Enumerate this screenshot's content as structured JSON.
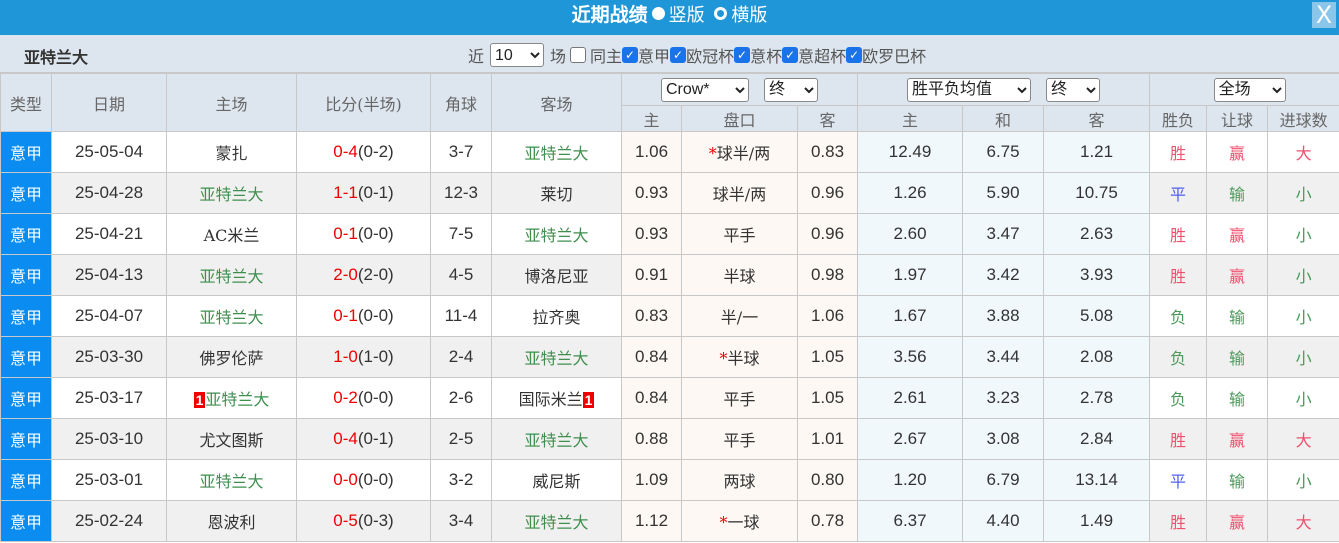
{
  "title": {
    "text": "近期战绩",
    "opt_vertical": "竖版",
    "opt_horizontal": "横版",
    "close": "X"
  },
  "filter": {
    "team": "亚特兰大",
    "near": "近",
    "count": "10",
    "games": "场",
    "same_home": "同主",
    "leagues": [
      "意甲",
      "欧冠杯",
      "意杯",
      "意超杯",
      "欧罗巴杯"
    ]
  },
  "header": {
    "type": "类型",
    "date": "日期",
    "home": "主场",
    "score": "比分(半场)",
    "corner": "角球",
    "away": "客场",
    "company": "Crow*",
    "final1": "终",
    "odds_type": "胜平负均值",
    "final2": "终",
    "scope": "全场",
    "h_home": "主",
    "h_line": "盘口",
    "h_away": "客",
    "e_home": "主",
    "e_draw": "和",
    "e_away": "客",
    "res_wl": "胜负",
    "res_hc": "让球",
    "res_goals": "进球数"
  },
  "rows": [
    {
      "type": "意甲",
      "date": "25-05-04",
      "home": "蒙扎",
      "home_hl": false,
      "score": "0-4",
      "half": "(0-2)",
      "corner": "3-7",
      "away": "亚特兰大",
      "away_hl": true,
      "ah": "1.06",
      "star": "*",
      "line": "球半/两",
      "aa": "0.83",
      "eh": "12.49",
      "ed": "6.75",
      "ea": "1.21",
      "wl": "胜",
      "hc": "赢",
      "goals": "大"
    },
    {
      "type": "意甲",
      "date": "25-04-28",
      "home": "亚特兰大",
      "home_hl": true,
      "score": "1-1",
      "half": "(0-1)",
      "corner": "12-3",
      "away": "莱切",
      "away_hl": false,
      "ah": "0.93",
      "star": "",
      "line": "球半/两",
      "aa": "0.96",
      "eh": "1.26",
      "ed": "5.90",
      "ea": "10.75",
      "wl": "平",
      "hc": "输",
      "goals": "小"
    },
    {
      "type": "意甲",
      "date": "25-04-21",
      "home": "AC米兰",
      "home_hl": false,
      "score": "0-1",
      "half": "(0-0)",
      "corner": "7-5",
      "away": "亚特兰大",
      "away_hl": true,
      "ah": "0.93",
      "star": "",
      "line": "平手",
      "aa": "0.96",
      "eh": "2.60",
      "ed": "3.47",
      "ea": "2.63",
      "wl": "胜",
      "hc": "赢",
      "goals": "小"
    },
    {
      "type": "意甲",
      "date": "25-04-13",
      "home": "亚特兰大",
      "home_hl": true,
      "score": "2-0",
      "half": "(2-0)",
      "corner": "4-5",
      "away": "博洛尼亚",
      "away_hl": false,
      "ah": "0.91",
      "star": "",
      "line": "半球",
      "aa": "0.98",
      "eh": "1.97",
      "ed": "3.42",
      "ea": "3.93",
      "wl": "胜",
      "hc": "赢",
      "goals": "小"
    },
    {
      "type": "意甲",
      "date": "25-04-07",
      "home": "亚特兰大",
      "home_hl": true,
      "score": "0-1",
      "half": "(0-0)",
      "corner": "11-4",
      "away": "拉齐奥",
      "away_hl": false,
      "ah": "0.83",
      "star": "",
      "line": "半/一",
      "aa": "1.06",
      "eh": "1.67",
      "ed": "3.88",
      "ea": "5.08",
      "wl": "负",
      "hc": "输",
      "goals": "小"
    },
    {
      "type": "意甲",
      "date": "25-03-30",
      "home": "佛罗伦萨",
      "home_hl": false,
      "score": "1-0",
      "half": "(1-0)",
      "corner": "2-4",
      "away": "亚特兰大",
      "away_hl": true,
      "ah": "0.84",
      "star": "*",
      "line": "半球",
      "aa": "1.05",
      "eh": "3.56",
      "ed": "3.44",
      "ea": "2.08",
      "wl": "负",
      "hc": "输",
      "goals": "小"
    },
    {
      "type": "意甲",
      "date": "25-03-17",
      "home": "亚特兰大",
      "home_hl": true,
      "home_card": "1",
      "score": "0-2",
      "half": "(0-0)",
      "corner": "2-6",
      "away": "国际米兰",
      "away_hl": false,
      "away_card": "1",
      "ah": "0.84",
      "star": "",
      "line": "平手",
      "aa": "1.05",
      "eh": "2.61",
      "ed": "3.23",
      "ea": "2.78",
      "wl": "负",
      "hc": "输",
      "goals": "小"
    },
    {
      "type": "意甲",
      "date": "25-03-10",
      "home": "尤文图斯",
      "home_hl": false,
      "score": "0-4",
      "half": "(0-1)",
      "corner": "2-5",
      "away": "亚特兰大",
      "away_hl": true,
      "ah": "0.88",
      "star": "",
      "line": "平手",
      "aa": "1.01",
      "eh": "2.67",
      "ed": "3.08",
      "ea": "2.84",
      "wl": "胜",
      "hc": "赢",
      "goals": "大"
    },
    {
      "type": "意甲",
      "date": "25-03-01",
      "home": "亚特兰大",
      "home_hl": true,
      "score": "0-0",
      "half": "(0-0)",
      "corner": "3-2",
      "away": "威尼斯",
      "away_hl": false,
      "ah": "1.09",
      "star": "",
      "line": "两球",
      "aa": "0.80",
      "eh": "1.20",
      "ed": "6.79",
      "ea": "13.14",
      "wl": "平",
      "hc": "输",
      "goals": "小"
    },
    {
      "type": "意甲",
      "date": "25-02-24",
      "home": "恩波利",
      "home_hl": false,
      "score": "0-5",
      "half": "(0-3)",
      "corner": "3-4",
      "away": "亚特兰大",
      "away_hl": true,
      "ah": "1.12",
      "star": "*",
      "line": "一球",
      "aa": "0.78",
      "eh": "6.37",
      "ed": "4.40",
      "ea": "1.49",
      "wl": "胜",
      "hc": "赢",
      "goals": "大"
    }
  ],
  "colors": {
    "title_bg": "#1e96d8",
    "type_bg": "#0a8cf0",
    "team_highlight": "#3f8f4f",
    "score": "#e00000",
    "win": "#f0506e",
    "draw": "#5060f0",
    "lose": "#4a9a5a"
  }
}
